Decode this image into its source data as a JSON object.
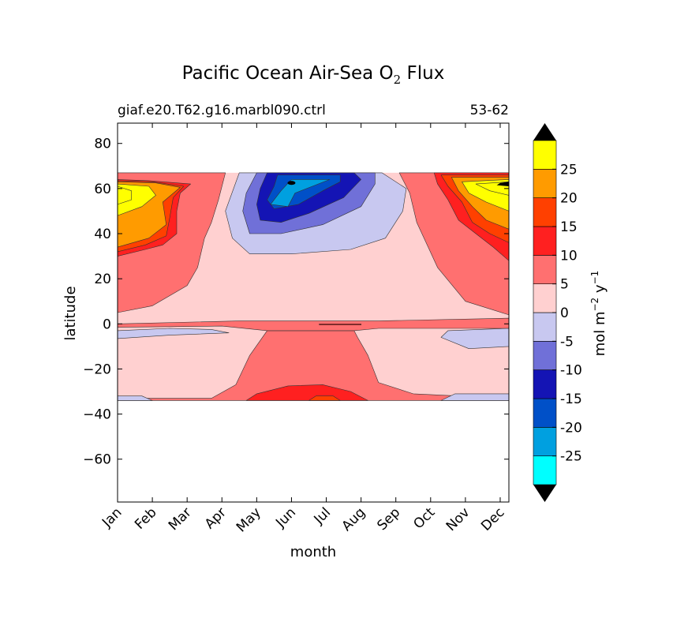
{
  "chart_data": {
    "type": "contour",
    "title": "Pacific Ocean Air-Sea O",
    "title_subscript": "2",
    "title_suffix": "Flux",
    "subtitle_left": "giaf.e20.T62.g16.marbl090.ctrl",
    "subtitle_right": "53-62",
    "xlabel": "month",
    "ylabel": "latitude",
    "x_tick_labels": [
      "Jan",
      "Feb",
      "Mar",
      "Apr",
      "May",
      "Jun",
      "Jul",
      "Aug",
      "Sep",
      "Oct",
      "Nov",
      "Dec"
    ],
    "x_tick_values": [
      0.5,
      1.5,
      2.5,
      3.5,
      4.5,
      5.5,
      6.5,
      7.5,
      8.5,
      9.5,
      10.5,
      11.5
    ],
    "xlim": [
      0.5,
      11.75
    ],
    "y_tick_labels": [
      "80",
      "60",
      "40",
      "20",
      "0",
      "−20",
      "−40",
      "−60"
    ],
    "y_tick_values": [
      80,
      60,
      40,
      20,
      0,
      -20,
      -40,
      -60
    ],
    "ylim": [
      -79,
      89
    ],
    "data_lat_range": [
      -34,
      67
    ],
    "colorbar": {
      "label": "mol m",
      "label_sup1": "−2",
      "label_mid": "y",
      "label_sup2": "−1",
      "tick_labels": [
        "25",
        "20",
        "15",
        "10",
        "5",
        "0",
        "-5",
        "-10",
        "-15",
        "-20",
        "-25"
      ],
      "tick_values": [
        25,
        20,
        15,
        10,
        5,
        0,
        -5,
        -10,
        -15,
        -20,
        -25
      ],
      "levels": [
        -30,
        -25,
        -20,
        -15,
        -10,
        -5,
        0,
        5,
        10,
        15,
        20,
        25,
        30
      ],
      "colors": [
        "#00ffff",
        "#00a0e0",
        "#0050c8",
        "#1414b4",
        "#7070d8",
        "#c8c8f0",
        "#ffd0d0",
        "#ff7070",
        "#ff2020",
        "#ff4000",
        "#ff9b00",
        "#ffff00"
      ],
      "extend": "both",
      "extend_color": "#000000"
    },
    "regions": [
      {
        "name": "positive-subtropical-south",
        "level": 5,
        "points": [
          [
            0.5,
            -34
          ],
          [
            11.75,
            -34
          ],
          [
            11.75,
            -33
          ],
          [
            9,
            -31
          ],
          [
            8,
            -26
          ],
          [
            7.7,
            -14
          ],
          [
            7.4,
            -6
          ],
          [
            7.3,
            -3
          ],
          [
            4.8,
            -3
          ],
          [
            4.3,
            -14
          ],
          [
            3.9,
            -27
          ],
          [
            3.2,
            -33
          ],
          [
            0.5,
            -33
          ]
        ]
      },
      {
        "name": "positive-equatorial",
        "level": 5,
        "points": [
          [
            0.5,
            0
          ],
          [
            4,
            1.3
          ],
          [
            8,
            1.3
          ],
          [
            11.75,
            2.5
          ],
          [
            11.75,
            -2
          ],
          [
            8,
            -2
          ],
          [
            7.3,
            -3
          ],
          [
            4.8,
            -3
          ],
          [
            3.5,
            -1
          ],
          [
            0.5,
            -1.5
          ]
        ]
      },
      {
        "name": "positive-northwest",
        "level": 5,
        "points": [
          [
            0.5,
            67
          ],
          [
            3.6,
            67
          ],
          [
            3.4,
            55
          ],
          [
            3.2,
            45
          ],
          [
            3,
            38
          ],
          [
            2.8,
            25
          ],
          [
            2.5,
            17
          ],
          [
            1.5,
            8
          ],
          [
            0.5,
            5
          ]
        ]
      },
      {
        "name": "positive-northeast",
        "level": 5,
        "points": [
          [
            11.75,
            67
          ],
          [
            8.6,
            67
          ],
          [
            8.9,
            58
          ],
          [
            9.1,
            45
          ],
          [
            9.4,
            35
          ],
          [
            9.7,
            25
          ],
          [
            10.5,
            10
          ],
          [
            11.75,
            4
          ]
        ]
      },
      {
        "name": "southern-negative-band",
        "level": -5,
        "points": [
          [
            0.5,
            -6.5
          ],
          [
            2,
            -5
          ],
          [
            3.7,
            -4
          ],
          [
            3.2,
            -2.5
          ],
          [
            2,
            -2
          ],
          [
            0.5,
            -3
          ]
        ]
      },
      {
        "name": "southeast-negative-patch",
        "level": -5,
        "points": [
          [
            11.75,
            -2
          ],
          [
            10,
            -3
          ],
          [
            9.8,
            -6
          ],
          [
            10.6,
            -11
          ],
          [
            11.75,
            -10
          ]
        ]
      },
      {
        "name": "southwest-negative-strip",
        "level": -5,
        "points": [
          [
            0.5,
            -34
          ],
          [
            1.5,
            -34
          ],
          [
            1.2,
            -32
          ],
          [
            0.5,
            -32
          ]
        ]
      },
      {
        "name": "southeast-negative-strip",
        "level": -5,
        "points": [
          [
            11.75,
            -34
          ],
          [
            9.8,
            -34
          ],
          [
            10.2,
            -31
          ],
          [
            11.75,
            -31
          ]
        ]
      },
      {
        "name": "equator-red-line",
        "level": 10,
        "points": [
          [
            6.3,
            0
          ],
          [
            7.5,
            0
          ],
          [
            7.5,
            -0.5
          ],
          [
            6.3,
            -0.5
          ]
        ]
      },
      {
        "name": "south-pink-blob",
        "level": 10,
        "points": [
          [
            4.2,
            -34
          ],
          [
            7.7,
            -34
          ],
          [
            7.2,
            -30
          ],
          [
            6.4,
            -27
          ],
          [
            5.4,
            -27.5
          ],
          [
            4.5,
            -31
          ]
        ]
      },
      {
        "name": "south-red-core",
        "level": 15,
        "points": [
          [
            6,
            -34
          ],
          [
            6.9,
            -34
          ],
          [
            6.7,
            -32
          ],
          [
            6.2,
            -32
          ]
        ]
      },
      {
        "name": "north-negative-5",
        "level": -5,
        "points": [
          [
            4,
            67
          ],
          [
            8.1,
            67
          ],
          [
            8.8,
            60
          ],
          [
            8.7,
            50
          ],
          [
            8.2,
            38
          ],
          [
            7.2,
            33
          ],
          [
            5.5,
            31
          ],
          [
            4.3,
            31
          ],
          [
            3.8,
            38
          ],
          [
            3.6,
            50
          ]
        ]
      },
      {
        "name": "north-negative-10",
        "level": -10,
        "points": [
          [
            4.5,
            67
          ],
          [
            7.9,
            67
          ],
          [
            7.9,
            62
          ],
          [
            7.5,
            52
          ],
          [
            6.4,
            44
          ],
          [
            5.2,
            40
          ],
          [
            4.3,
            40
          ],
          [
            4.1,
            50
          ],
          [
            4.2,
            58
          ]
        ]
      },
      {
        "name": "north-negative-15",
        "level": -15,
        "points": [
          [
            4.8,
            67
          ],
          [
            7.3,
            67
          ],
          [
            7.5,
            64
          ],
          [
            7,
            56
          ],
          [
            6,
            49
          ],
          [
            5.2,
            45
          ],
          [
            4.6,
            46
          ],
          [
            4.5,
            53
          ],
          [
            4.6,
            60
          ]
        ]
      },
      {
        "name": "north-negative-20",
        "level": -20,
        "points": [
          [
            5.1,
            66
          ],
          [
            6.9,
            66
          ],
          [
            6.9,
            63
          ],
          [
            6.4,
            59
          ],
          [
            5.7,
            53
          ],
          [
            5,
            51
          ],
          [
            4.8,
            55
          ],
          [
            5,
            61
          ]
        ]
      },
      {
        "name": "north-negative-25",
        "level": -25,
        "points": [
          [
            5.5,
            64
          ],
          [
            6.6,
            64
          ],
          [
            6.1,
            61
          ],
          [
            5.6,
            58
          ],
          [
            5.4,
            52
          ],
          [
            4.9,
            53
          ],
          [
            5.2,
            59
          ]
        ]
      },
      {
        "name": "west-plus-10",
        "level": 10,
        "points": [
          [
            0.5,
            64
          ],
          [
            1.4,
            63.5
          ],
          [
            2.6,
            62
          ],
          [
            2.3,
            58
          ],
          [
            2.2,
            50
          ],
          [
            2.2,
            40
          ],
          [
            1.8,
            35
          ],
          [
            1.3,
            33
          ],
          [
            0.5,
            30
          ]
        ]
      },
      {
        "name": "west-plus-15",
        "level": 15,
        "points": [
          [
            0.5,
            63.5
          ],
          [
            1.5,
            63
          ],
          [
            2.4,
            61
          ],
          [
            2.1,
            56
          ],
          [
            2,
            47
          ],
          [
            1.9,
            39
          ],
          [
            1.3,
            35
          ],
          [
            0.5,
            32
          ]
        ]
      },
      {
        "name": "west-plus-20",
        "level": 20,
        "points": [
          [
            0.5,
            63
          ],
          [
            1.6,
            62.5
          ],
          [
            2.3,
            60.5
          ],
          [
            1.8,
            54
          ],
          [
            1.9,
            44
          ],
          [
            1.4,
            38
          ],
          [
            0.5,
            34
          ]
        ]
      },
      {
        "name": "west-plus-25",
        "level": 25,
        "points": [
          [
            0.5,
            62
          ],
          [
            1.4,
            61
          ],
          [
            1.6,
            57
          ],
          [
            1.2,
            52
          ],
          [
            0.5,
            48
          ]
        ]
      },
      {
        "name": "west-plus-30",
        "level": 30,
        "points": [
          [
            0.5,
            61
          ],
          [
            0.9,
            59
          ],
          [
            0.9,
            55
          ],
          [
            0.5,
            53
          ]
        ]
      },
      {
        "name": "east-plus-10",
        "level": 10,
        "points": [
          [
            11.75,
            67
          ],
          [
            9.6,
            67
          ],
          [
            9.7,
            62
          ],
          [
            10,
            55
          ],
          [
            10.3,
            46
          ],
          [
            10.8,
            40
          ],
          [
            11.3,
            34
          ],
          [
            11.75,
            28
          ]
        ]
      },
      {
        "name": "east-plus-15",
        "level": 15,
        "points": [
          [
            11.75,
            66
          ],
          [
            9.8,
            66
          ],
          [
            10,
            61
          ],
          [
            10.4,
            54
          ],
          [
            10.7,
            45
          ],
          [
            11.2,
            40
          ],
          [
            11.75,
            36
          ]
        ]
      },
      {
        "name": "east-plus-20",
        "level": 20,
        "points": [
          [
            11.75,
            65
          ],
          [
            10.1,
            65
          ],
          [
            10.3,
            59
          ],
          [
            10.7,
            52
          ],
          [
            11.1,
            46
          ],
          [
            11.75,
            42
          ]
        ]
      },
      {
        "name": "east-plus-25",
        "level": 25,
        "points": [
          [
            11.75,
            64
          ],
          [
            10.4,
            63
          ],
          [
            10.6,
            58
          ],
          [
            11.1,
            54
          ],
          [
            11.75,
            50
          ]
        ]
      },
      {
        "name": "east-plus-30",
        "level": 30,
        "points": [
          [
            11.75,
            63
          ],
          [
            10.8,
            62
          ],
          [
            11.2,
            59
          ],
          [
            11.75,
            57
          ]
        ]
      }
    ]
  }
}
